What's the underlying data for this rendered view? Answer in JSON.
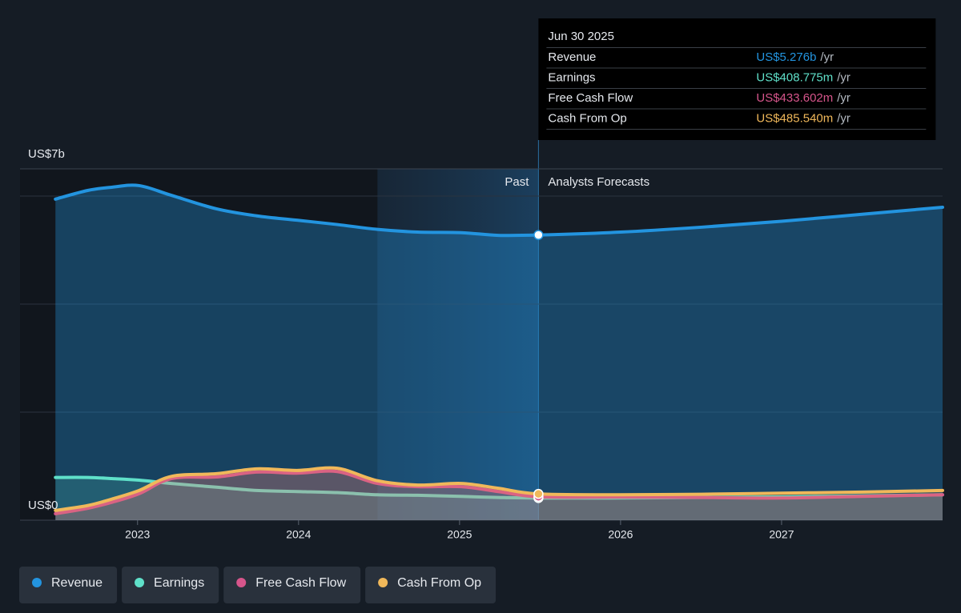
{
  "chart_data": {
    "type": "line",
    "x": [
      2022.49,
      2022.69,
      2022.84,
      2023.01,
      2023.21,
      2023.49,
      2023.74,
      2023.99,
      2024.24,
      2024.49,
      2024.74,
      2025.01,
      2025.24,
      2025.49,
      2026.0,
      2026.5,
      2027.0,
      2027.5,
      2028.0
    ],
    "series": [
      {
        "name": "Revenue",
        "color": "#2394df",
        "values": [
          5.94,
          6.1,
          6.16,
          6.19,
          6.01,
          5.76,
          5.63,
          5.55,
          5.47,
          5.38,
          5.33,
          5.32,
          5.27,
          5.276,
          5.33,
          5.42,
          5.53,
          5.66,
          5.79
        ]
      },
      {
        "name": "Earnings",
        "color": "#5fe0c9",
        "values": [
          0.79,
          0.79,
          0.77,
          0.74,
          0.68,
          0.61,
          0.55,
          0.53,
          0.51,
          0.47,
          0.46,
          0.44,
          0.42,
          0.409,
          0.41,
          0.42,
          0.43,
          0.45,
          0.47
        ]
      },
      {
        "name": "Free Cash Flow",
        "color": "#d6558b",
        "values": [
          0.12,
          0.22,
          0.33,
          0.49,
          0.77,
          0.8,
          0.89,
          0.87,
          0.9,
          0.68,
          0.62,
          0.62,
          0.53,
          0.434,
          0.43,
          0.42,
          0.41,
          0.44,
          0.47
        ]
      },
      {
        "name": "Cash From Op",
        "color": "#f0b85a",
        "values": [
          0.18,
          0.27,
          0.39,
          0.55,
          0.81,
          0.86,
          0.95,
          0.92,
          0.96,
          0.73,
          0.65,
          0.68,
          0.59,
          0.486,
          0.47,
          0.48,
          0.5,
          0.52,
          0.55
        ]
      }
    ],
    "xlim": [
      2022.27,
      2028.0
    ],
    "xticks": [
      2023,
      2024,
      2025,
      2026,
      2027
    ],
    "ylim": [
      0,
      6.5
    ],
    "yticks": [
      {
        "value": 0,
        "label": "US$0"
      },
      {
        "value": 6.5,
        "label": "US$7b"
      }
    ],
    "past_label": "Past",
    "forecast_label": "Analysts Forecasts",
    "tooltip": {
      "date": "Jun 30 2025",
      "unit": "/yr",
      "values": [
        "US$5.276b",
        "US$408.775m",
        "US$433.602m",
        "US$485.540m"
      ]
    }
  }
}
